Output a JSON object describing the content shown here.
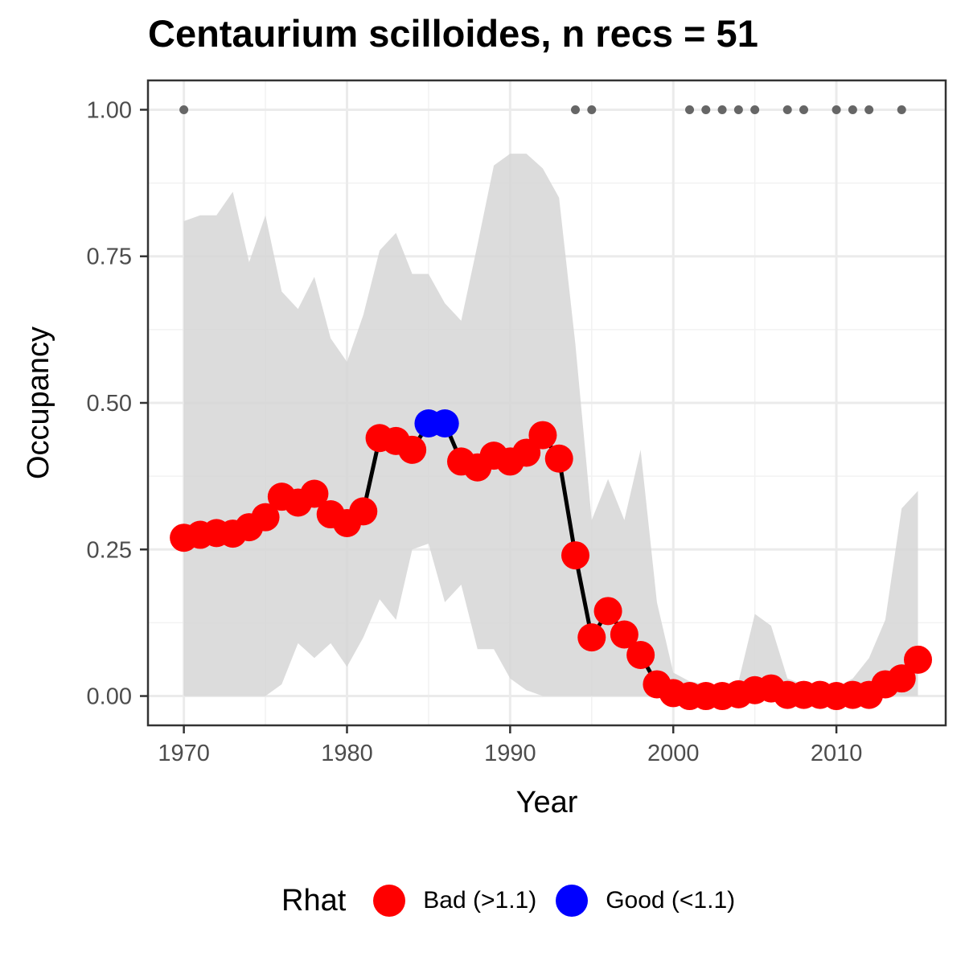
{
  "chart_data": {
    "type": "line",
    "title": "Centaurium scilloides, n recs = 51",
    "xlabel": "Year",
    "ylabel": "Occupancy",
    "xlim": [
      1967.8,
      2016.7
    ],
    "ylim": [
      -0.05,
      1.05
    ],
    "x_ticks": [
      1970,
      1980,
      1990,
      2000,
      2010
    ],
    "x_tick_labels": [
      "1970",
      "1980",
      "1990",
      "2000",
      "2010"
    ],
    "y_ticks": [
      0,
      0.25,
      0.5,
      0.75,
      1.0
    ],
    "y_tick_labels": [
      "0.00",
      "0.25",
      "0.50",
      "0.75",
      "1.00"
    ],
    "grid": true,
    "legend": {
      "title": "Rhat",
      "position": "bottom",
      "entries": [
        {
          "label": "Bad (>1.1)",
          "color": "#ff0000"
        },
        {
          "label": "Good (<1.1)",
          "color": "#0000ff"
        }
      ]
    },
    "colors": {
      "bad": "#ff0000",
      "good": "#0000ff",
      "ribbon": "#d6d6d6",
      "line": "#000000",
      "records": "#666666"
    },
    "series": [
      {
        "x": [
          1970,
          1971,
          1972,
          1973,
          1974,
          1975,
          1976,
          1977,
          1978,
          1979,
          1980,
          1981,
          1982,
          1983,
          1984,
          1985,
          1986,
          1987,
          1988,
          1989,
          1990,
          1991,
          1992,
          1993,
          1994,
          1995,
          1996,
          1997,
          1998,
          1999,
          2000,
          2001,
          2002,
          2003,
          2004,
          2005,
          2006,
          2007,
          2008,
          2009,
          2010,
          2011,
          2012,
          2013,
          2014,
          2015
        ],
        "y": [
          0.27,
          0.275,
          0.278,
          0.277,
          0.288,
          0.305,
          0.34,
          0.33,
          0.345,
          0.31,
          0.295,
          0.315,
          0.44,
          0.435,
          0.42,
          0.465,
          0.465,
          0.4,
          0.39,
          0.41,
          0.4,
          0.415,
          0.445,
          0.405,
          0.24,
          0.1,
          0.145,
          0.105,
          0.07,
          0.02,
          0.005,
          0.0,
          0.0,
          0.0,
          0.003,
          0.01,
          0.013,
          0.002,
          0.002,
          0.002,
          0.0,
          0.002,
          0.002,
          0.02,
          0.03,
          0.062
        ],
        "rhat": [
          "Bad",
          "Bad",
          "Bad",
          "Bad",
          "Bad",
          "Bad",
          "Bad",
          "Bad",
          "Bad",
          "Bad",
          "Bad",
          "Bad",
          "Bad",
          "Bad",
          "Bad",
          "Good",
          "Good",
          "Bad",
          "Bad",
          "Bad",
          "Bad",
          "Bad",
          "Bad",
          "Bad",
          "Bad",
          "Bad",
          "Bad",
          "Bad",
          "Bad",
          "Bad",
          "Bad",
          "Bad",
          "Bad",
          "Bad",
          "Bad",
          "Bad",
          "Bad",
          "Bad",
          "Bad",
          "Bad",
          "Bad",
          "Bad",
          "Bad",
          "Bad",
          "Bad",
          "Bad"
        ],
        "lower": [
          0,
          0,
          0,
          0,
          0,
          0,
          0.02,
          0.09,
          0.065,
          0.09,
          0.05,
          0.1,
          0.165,
          0.13,
          0.25,
          0.26,
          0.16,
          0.19,
          0.08,
          0.08,
          0.03,
          0.01,
          0,
          0,
          0,
          0,
          0,
          0,
          0,
          0,
          0,
          0,
          0,
          0,
          0,
          0,
          0,
          0,
          0,
          0,
          0,
          0,
          0,
          0,
          0,
          0
        ],
        "upper": [
          0.81,
          0.82,
          0.82,
          0.86,
          0.74,
          0.82,
          0.69,
          0.66,
          0.715,
          0.61,
          0.57,
          0.65,
          0.76,
          0.79,
          0.72,
          0.72,
          0.67,
          0.64,
          0.77,
          0.905,
          0.925,
          0.925,
          0.9,
          0.85,
          0.6,
          0.3,
          0.37,
          0.3,
          0.42,
          0.16,
          0.04,
          0.025,
          0.02,
          0.02,
          0.025,
          0.14,
          0.12,
          0.03,
          0.02,
          0.015,
          0.015,
          0.03,
          0.065,
          0.13,
          0.32,
          0.35
        ]
      }
    ],
    "record_years": [
      1970,
      1994,
      1995,
      2001,
      2002,
      2003,
      2004,
      2005,
      2007,
      2008,
      2010,
      2011,
      2012,
      2014
    ],
    "record_value": 1.0
  }
}
